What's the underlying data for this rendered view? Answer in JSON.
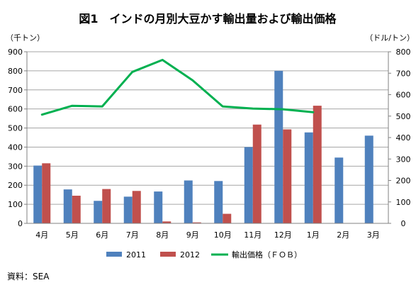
{
  "chart_data": {
    "type": "bar+line",
    "title": "図1　インドの月別大豆かす輸出量および輸出価格",
    "left_unit": "（千トン）",
    "right_unit": "（ドル/トン）",
    "categories": [
      "4月",
      "5月",
      "6月",
      "7月",
      "8月",
      "9月",
      "10月",
      "11月",
      "12月",
      "1月",
      "2月",
      "3月"
    ],
    "left_axis": {
      "min": 0,
      "max": 900,
      "step": 100,
      "ticks": [
        "0",
        "100",
        "200",
        "300",
        "400",
        "500",
        "600",
        "700",
        "800",
        "900"
      ]
    },
    "right_axis": {
      "min": 0,
      "max": 800,
      "step": 100,
      "ticks": [
        "0",
        "100",
        "200",
        "300",
        "400",
        "500",
        "600",
        "700",
        "800"
      ]
    },
    "grid": true,
    "legend_position": "bottom",
    "series": [
      {
        "name": "2011",
        "kind": "bar",
        "axis": "left",
        "color": "#4F81BD",
        "values": [
          303,
          178,
          118,
          140,
          167,
          225,
          222,
          400,
          800,
          477,
          345,
          460
        ]
      },
      {
        "name": "2012",
        "kind": "bar",
        "axis": "left",
        "color": "#C0504D",
        "values": [
          315,
          145,
          180,
          170,
          10,
          5,
          50,
          518,
          493,
          617,
          null,
          null
        ]
      },
      {
        "name": "輸出価格（ＦＯＢ）",
        "kind": "line",
        "axis": "right",
        "color": "#00B050",
        "values": [
          507,
          548,
          545,
          706,
          762,
          667,
          545,
          535,
          532,
          518,
          null,
          null
        ]
      }
    ]
  },
  "source": "資料：SEA"
}
